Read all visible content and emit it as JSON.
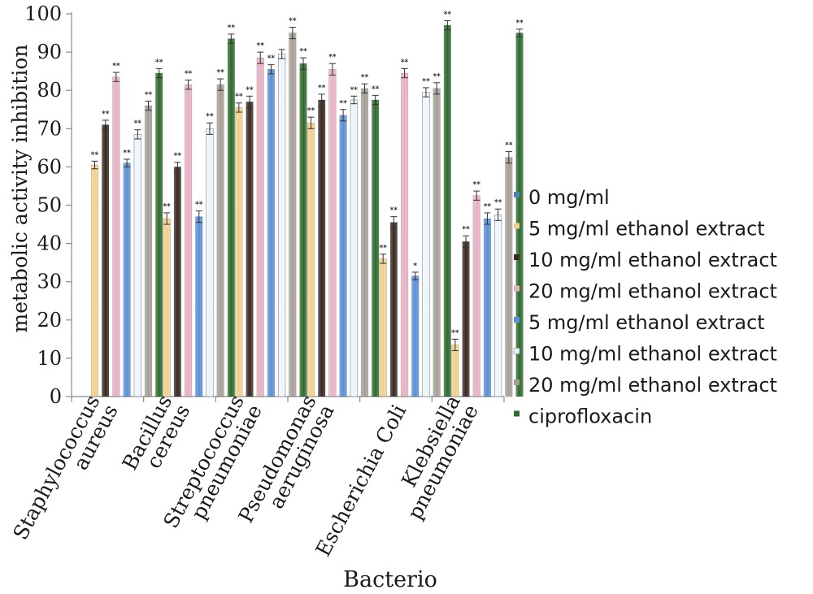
{
  "chart_data": {
    "type": "bar",
    "title": "",
    "xlabel": "Bacterio",
    "ylabel": "metabolic activity inhibition",
    "ylim": [
      0,
      100
    ],
    "yticks": [
      "0",
      "10",
      "20",
      "30",
      "40",
      "50",
      "60",
      "70",
      "80",
      "90",
      "100"
    ],
    "categories": [
      [
        "Staphylococcus",
        "aureus"
      ],
      [
        "Bacillus",
        "cereus"
      ],
      [
        "Streptococcus",
        "pneumoniae"
      ],
      [
        "Pseudomonas",
        "aeruginosa"
      ],
      [
        "Escherichia Coli"
      ],
      [
        "Klebsiella",
        "pneumoniae"
      ]
    ],
    "series": [
      {
        "name": "0 mg/ml",
        "color": "#4f81bd",
        "values": [
          0,
          0,
          0,
          0,
          0,
          0
        ],
        "errors": [
          0,
          0,
          0,
          0,
          0,
          0
        ],
        "stars": [
          "",
          "",
          "",
          "",
          "",
          ""
        ]
      },
      {
        "name": "5 mg/ml ethanol extract",
        "color": "#f2d08c",
        "values": [
          60.5,
          46.5,
          75.5,
          71.5,
          36,
          13.5
        ],
        "errors": [
          1,
          1.5,
          1.2,
          1.5,
          1.2,
          1.5
        ],
        "stars": [
          "**",
          "**",
          "**",
          "**",
          "**",
          "**"
        ]
      },
      {
        "name": "10 mg/ml ethanol extract",
        "color": "#3a2a22",
        "values": [
          71,
          60,
          77,
          77.5,
          45.5,
          40.5
        ],
        "errors": [
          1.2,
          1.2,
          1.5,
          1.5,
          1.5,
          1.5
        ],
        "stars": [
          "**",
          "**",
          "**",
          "**",
          "**",
          "**"
        ]
      },
      {
        "name": "20 mg/ml ethanol extract",
        "color": "#e7b1c3",
        "values": [
          83.5,
          81.5,
          88.5,
          85.5,
          84.5,
          52.5
        ],
        "errors": [
          1.2,
          1.2,
          1.5,
          1.5,
          1.2,
          1.2
        ],
        "stars": [
          "**",
          "**",
          "**",
          "**",
          "**",
          "**"
        ]
      },
      {
        "name": "5 mg/ml ethanol extract",
        "color": "#5b8fd6",
        "values": [
          61,
          47,
          85.5,
          73.5,
          31.5,
          46.5
        ],
        "errors": [
          1,
          1.5,
          1.2,
          1.5,
          1,
          1.5
        ],
        "stars": [
          "**",
          "**",
          "**",
          "**",
          "*",
          "**"
        ]
      },
      {
        "name": "10 mg/ml ethanol extract",
        "color": "#eef6fb",
        "values": [
          68.5,
          70,
          89.5,
          77.5,
          79.5,
          47.5
        ],
        "errors": [
          1.2,
          1.5,
          1.2,
          1,
          1.2,
          1.5
        ],
        "stars": [
          "**",
          "**",
          "",
          "**",
          "**",
          "**"
        ]
      },
      {
        "name": "20 mg/ml ethanol extract",
        "color": "#a79f97",
        "values": [
          76,
          81.5,
          95,
          80.5,
          80.5,
          62.5
        ],
        "errors": [
          1.2,
          1.5,
          1.5,
          1.2,
          1.5,
          1.5
        ],
        "stars": [
          "**",
          "**",
          "**",
          "**",
          "**",
          "**"
        ]
      },
      {
        "name": "ciprofloxacin",
        "color": "#2e6b2e",
        "values": [
          84.5,
          93.5,
          87,
          77.5,
          97,
          95
        ],
        "errors": [
          1.2,
          1.2,
          1.5,
          1.2,
          1.2,
          1
        ],
        "stars": [
          "**",
          "**",
          "**",
          "**",
          "**",
          "**"
        ]
      }
    ],
    "legend_placement": "right",
    "grid": false
  }
}
